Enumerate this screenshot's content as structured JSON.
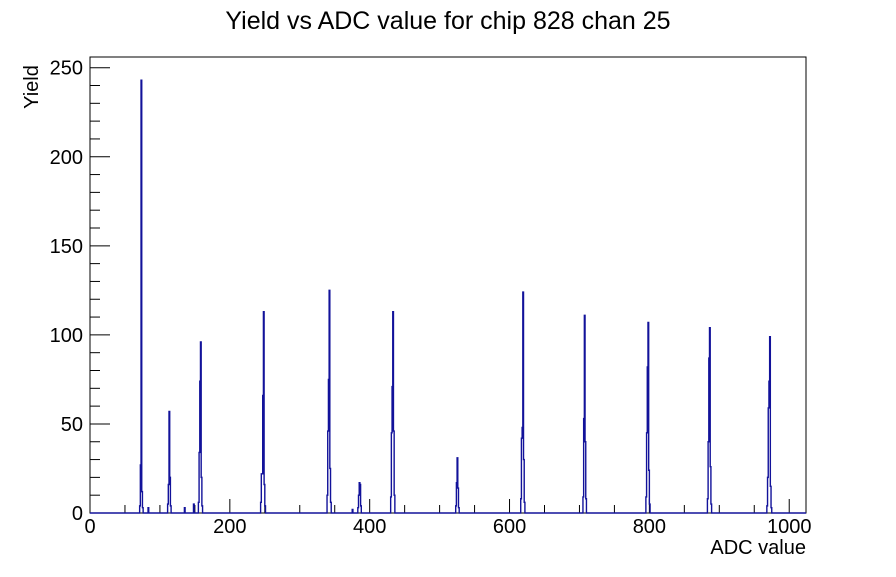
{
  "chart_data": {
    "type": "bar",
    "title": "Yield vs ADC value for chip 828 chan 25",
    "xlabel": "ADC value",
    "ylabel": "Yield",
    "xlim": [
      0,
      1024
    ],
    "ylim": [
      0,
      256
    ],
    "x_major_ticks": [
      0,
      200,
      400,
      600,
      800,
      1000
    ],
    "x_minor_step": 50,
    "y_major_ticks": [
      0,
      50,
      100,
      150,
      200,
      250
    ],
    "y_minor_step": 10,
    "grid": false,
    "legend": null,
    "background": "#ffffff",
    "axis_color": "#000000",
    "line_color": "#12129a",
    "bin_width": 1,
    "bins": [
      [
        71,
        4
      ],
      [
        72,
        27
      ],
      [
        73,
        243
      ],
      [
        74,
        12
      ],
      [
        75,
        3
      ],
      [
        83,
        3
      ],
      [
        111,
        5
      ],
      [
        112,
        16
      ],
      [
        113,
        57
      ],
      [
        114,
        20
      ],
      [
        115,
        4
      ],
      [
        135,
        3
      ],
      [
        148,
        5
      ],
      [
        155,
        6
      ],
      [
        156,
        34
      ],
      [
        157,
        74
      ],
      [
        158,
        96
      ],
      [
        159,
        20
      ],
      [
        160,
        4
      ],
      [
        244,
        6
      ],
      [
        245,
        22
      ],
      [
        246,
        22
      ],
      [
        247,
        66
      ],
      [
        248,
        113
      ],
      [
        249,
        16
      ],
      [
        250,
        4
      ],
      [
        339,
        10
      ],
      [
        340,
        46
      ],
      [
        341,
        75
      ],
      [
        342,
        125
      ],
      [
        343,
        25
      ],
      [
        344,
        6
      ],
      [
        375,
        2
      ],
      [
        383,
        3
      ],
      [
        384,
        10
      ],
      [
        385,
        17
      ],
      [
        386,
        16
      ],
      [
        387,
        4
      ],
      [
        430,
        9
      ],
      [
        431,
        45
      ],
      [
        432,
        71
      ],
      [
        433,
        113
      ],
      [
        434,
        46
      ],
      [
        435,
        10
      ],
      [
        523,
        4
      ],
      [
        524,
        17
      ],
      [
        525,
        31
      ],
      [
        526,
        14
      ],
      [
        527,
        3
      ],
      [
        616,
        8
      ],
      [
        617,
        42
      ],
      [
        618,
        48
      ],
      [
        619,
        124
      ],
      [
        620,
        30
      ],
      [
        621,
        6
      ],
      [
        705,
        9
      ],
      [
        706,
        53
      ],
      [
        707,
        111
      ],
      [
        708,
        40
      ],
      [
        709,
        8
      ],
      [
        795,
        9
      ],
      [
        796,
        45
      ],
      [
        797,
        82
      ],
      [
        798,
        107
      ],
      [
        799,
        24
      ],
      [
        800,
        5
      ],
      [
        883,
        8
      ],
      [
        884,
        40
      ],
      [
        885,
        87
      ],
      [
        886,
        104
      ],
      [
        887,
        26
      ],
      [
        888,
        5
      ],
      [
        968,
        4
      ],
      [
        969,
        20
      ],
      [
        970,
        59
      ],
      [
        971,
        74
      ],
      [
        972,
        99
      ],
      [
        973,
        15
      ],
      [
        974,
        3
      ]
    ],
    "peaks_summary": [
      {
        "adc": 73,
        "yield": 243
      },
      {
        "adc": 113,
        "yield": 57
      },
      {
        "adc": 158,
        "yield": 96
      },
      {
        "adc": 248,
        "yield": 113
      },
      {
        "adc": 342,
        "yield": 125
      },
      {
        "adc": 385,
        "yield": 17
      },
      {
        "adc": 433,
        "yield": 113
      },
      {
        "adc": 525,
        "yield": 31
      },
      {
        "adc": 619,
        "yield": 124
      },
      {
        "adc": 707,
        "yield": 111
      },
      {
        "adc": 798,
        "yield": 107
      },
      {
        "adc": 886,
        "yield": 104
      },
      {
        "adc": 972,
        "yield": 99
      }
    ]
  }
}
